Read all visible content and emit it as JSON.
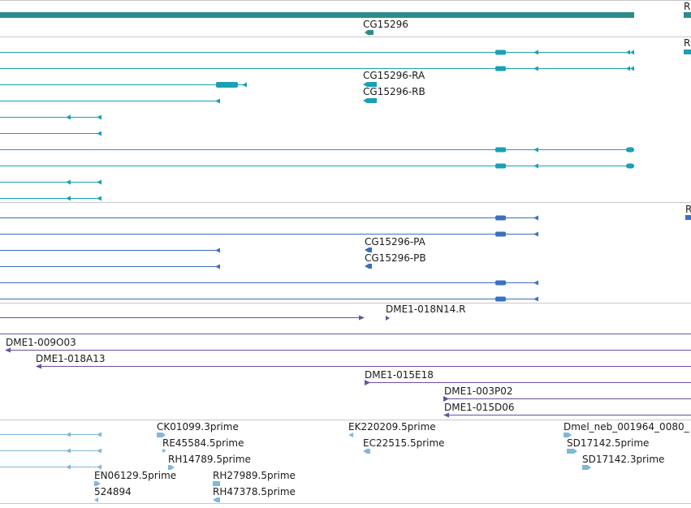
{
  "colors": {
    "gene": "#2e8b8b",
    "transcript": "#1aa0b4",
    "protein": "#3a6fc4",
    "clone": "#6a4fa3",
    "est": "#7fb8da",
    "divider": "#c8c8c8"
  },
  "tracks": {
    "gene": {
      "labels": [
        "CG15296"
      ],
      "edge_text": "R"
    },
    "transcripts": {
      "labels": [
        "CG15296-RA",
        "CG15296-RB"
      ],
      "edge_text": "R"
    },
    "proteins": {
      "labels": [
        "CG15296-PA",
        "CG15296-PB"
      ],
      "edge_text": "R"
    },
    "clones": {
      "labels": [
        "DME1-018N14.R",
        "DME1-009O03",
        "DME1-018A13",
        "DME1-015E18",
        "DME1-003P02",
        "DME1-015D06"
      ]
    },
    "ests": {
      "labels": [
        "CK01099.3prime",
        "RE45584.5prime",
        "RH14789.5prime",
        "EK220209.5prime",
        "EC22515.5prime",
        "Dmel_neb_001964_0080_",
        "SD17142.5prime",
        "SD17142.3prime",
        "EN06129.5prime",
        "524894",
        "RH27989.5prime",
        "RH47378.5prime"
      ]
    }
  }
}
